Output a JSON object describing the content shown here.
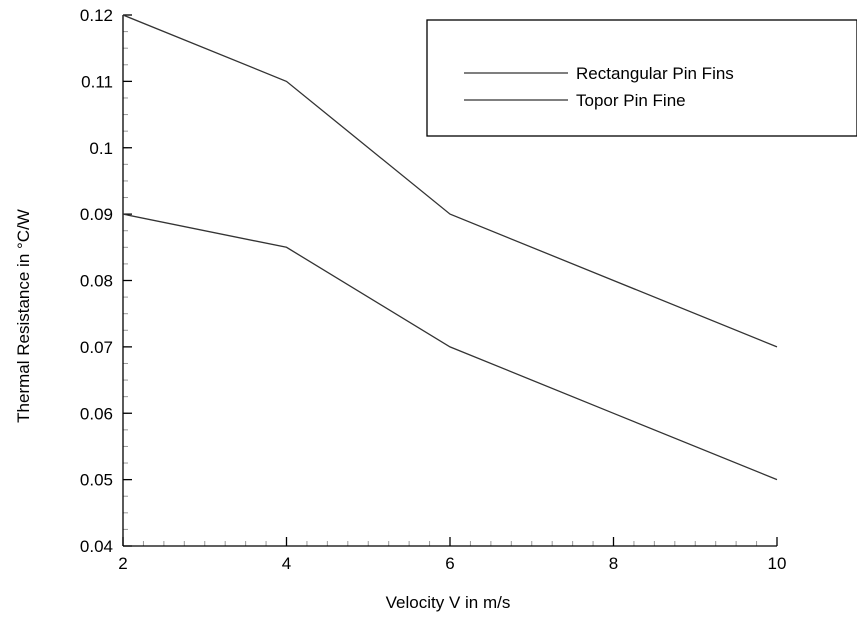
{
  "chart_data": {
    "type": "line",
    "title": "",
    "xlabel": "Velocity V in m/s",
    "ylabel": "Thermal Resistance in °C/W",
    "xlim": [
      2,
      10
    ],
    "ylim": [
      0.04,
      0.12
    ],
    "xticks": [
      2,
      4,
      6,
      8,
      10
    ],
    "xtick_labels": [
      "2",
      "4",
      "6",
      "8",
      "10"
    ],
    "yticks": [
      0.04,
      0.05,
      0.06,
      0.07,
      0.08,
      0.09,
      0.1,
      0.11,
      0.12
    ],
    "ytick_labels": [
      "0.04",
      "0.05",
      "0.06",
      "0.07",
      "0.08",
      "0.09",
      "0.1",
      "0.11",
      "0.12"
    ],
    "grid": false,
    "legend_position": "top-right",
    "series": [
      {
        "name": "Rectangular Pin Fins",
        "x": [
          2,
          4,
          6,
          8,
          10
        ],
        "y": [
          0.12,
          0.11,
          0.09,
          0.08,
          0.07
        ]
      },
      {
        "name": "Topor Pin Fine",
        "x": [
          2,
          4,
          6,
          8,
          10
        ],
        "y": [
          0.09,
          0.085,
          0.07,
          0.06,
          0.05
        ]
      }
    ],
    "colors": {
      "axis": "#000000",
      "series": [
        "#333333",
        "#333333"
      ]
    }
  }
}
